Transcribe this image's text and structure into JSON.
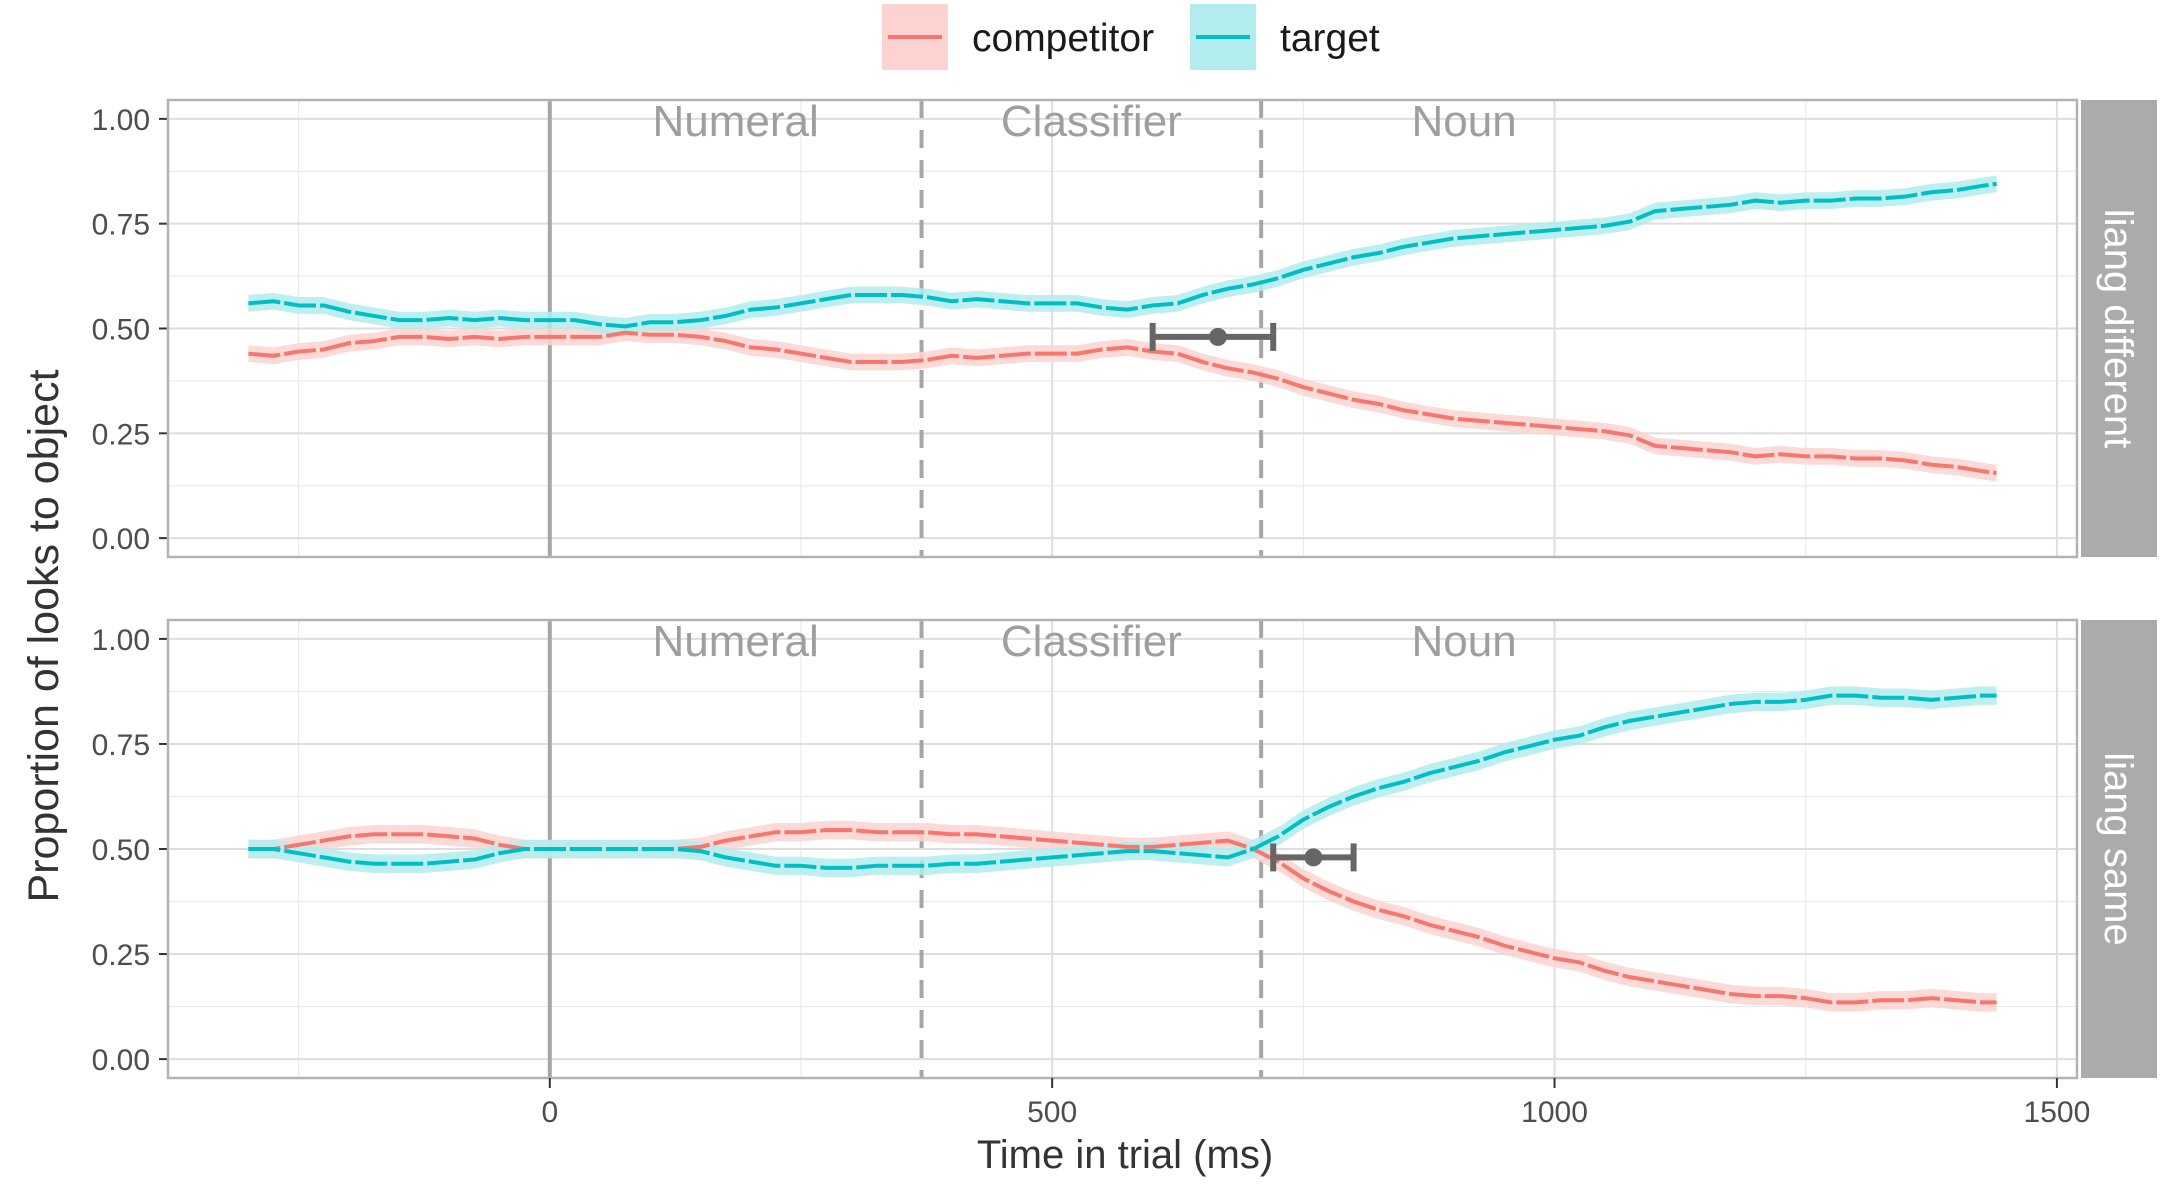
{
  "chart_data": {
    "type": "line",
    "xlabel": "Time in trial (ms)",
    "ylabel": "Proportion of looks to object",
    "xlim": [
      -380,
      1520
    ],
    "ylim": [
      -0.045,
      1.045
    ],
    "xticks": [
      0,
      500,
      1000,
      1500
    ],
    "xtick_labels": [
      "0",
      "500",
      "1000",
      "1500"
    ],
    "yticks": [
      0,
      0.25,
      0.5,
      0.75,
      1
    ],
    "ytick_labels": [
      "0.00",
      "0.25",
      "0.50",
      "0.75",
      "1.00"
    ],
    "grid": true,
    "legend": {
      "position": "top",
      "items": [
        {
          "label": "competitor",
          "color": "#F8766D",
          "ribbon": "#FCD3D0"
        },
        {
          "label": "target",
          "color": "#00BFC4",
          "ribbon": "#B2ECEE"
        }
      ]
    },
    "onset_markers": [
      {
        "x": 0,
        "style": "solid"
      },
      {
        "x": 370,
        "style": "dashed"
      },
      {
        "x": 708,
        "style": "dashed"
      }
    ],
    "region_labels": [
      {
        "label": "Numeral",
        "x": 185
      },
      {
        "label": "Classifier",
        "x": 539
      },
      {
        "label": "Noun",
        "x": 910
      }
    ],
    "panels": [
      {
        "strip_label": "liang different",
        "x": [
          -300,
          -275,
          -250,
          -225,
          -200,
          -175,
          -150,
          -125,
          -100,
          -75,
          -50,
          -25,
          0,
          25,
          50,
          75,
          100,
          125,
          150,
          175,
          200,
          225,
          250,
          275,
          300,
          325,
          350,
          375,
          400,
          425,
          450,
          475,
          500,
          525,
          550,
          575,
          600,
          625,
          650,
          675,
          700,
          725,
          750,
          775,
          800,
          825,
          850,
          875,
          900,
          925,
          950,
          975,
          1000,
          1025,
          1050,
          1075,
          1100,
          1125,
          1150,
          1175,
          1200,
          1225,
          1250,
          1275,
          1300,
          1325,
          1350,
          1375,
          1400,
          1425,
          1440
        ],
        "series": [
          {
            "name": "competitor",
            "ribbon": 0.02,
            "values": [
              0.44,
              0.435,
              0.445,
              0.45,
              0.465,
              0.47,
              0.48,
              0.48,
              0.475,
              0.48,
              0.475,
              0.48,
              0.48,
              0.48,
              0.48,
              0.49,
              0.485,
              0.485,
              0.48,
              0.47,
              0.455,
              0.45,
              0.44,
              0.43,
              0.42,
              0.42,
              0.42,
              0.425,
              0.435,
              0.43,
              0.435,
              0.44,
              0.44,
              0.44,
              0.45,
              0.455,
              0.445,
              0.44,
              0.42,
              0.405,
              0.395,
              0.38,
              0.36,
              0.345,
              0.33,
              0.32,
              0.305,
              0.295,
              0.285,
              0.28,
              0.275,
              0.27,
              0.265,
              0.26,
              0.255,
              0.245,
              0.22,
              0.215,
              0.21,
              0.205,
              0.195,
              0.2,
              0.195,
              0.195,
              0.19,
              0.19,
              0.185,
              0.175,
              0.17,
              0.16,
              0.155
            ]
          },
          {
            "name": "target",
            "ribbon": 0.02,
            "values": [
              0.56,
              0.565,
              0.555,
              0.555,
              0.54,
              0.53,
              0.52,
              0.52,
              0.525,
              0.52,
              0.525,
              0.52,
              0.52,
              0.52,
              0.51,
              0.505,
              0.515,
              0.515,
              0.52,
              0.53,
              0.545,
              0.55,
              0.56,
              0.57,
              0.58,
              0.58,
              0.58,
              0.575,
              0.565,
              0.57,
              0.565,
              0.56,
              0.56,
              0.56,
              0.55,
              0.545,
              0.555,
              0.56,
              0.58,
              0.595,
              0.605,
              0.62,
              0.64,
              0.655,
              0.67,
              0.68,
              0.695,
              0.705,
              0.715,
              0.72,
              0.725,
              0.73,
              0.735,
              0.74,
              0.745,
              0.755,
              0.78,
              0.785,
              0.79,
              0.795,
              0.805,
              0.8,
              0.805,
              0.805,
              0.81,
              0.81,
              0.815,
              0.825,
              0.83,
              0.84,
              0.845
            ]
          }
        ],
        "annotation": {
          "point_x": 665,
          "y": 0.48,
          "xmin": 600,
          "xmax": 720
        }
      },
      {
        "strip_label": "liang same",
        "x": [
          -300,
          -275,
          -250,
          -225,
          -200,
          -175,
          -150,
          -125,
          -100,
          -75,
          -50,
          -25,
          0,
          25,
          50,
          75,
          100,
          125,
          150,
          175,
          200,
          225,
          250,
          275,
          300,
          325,
          350,
          375,
          400,
          425,
          450,
          475,
          500,
          525,
          550,
          575,
          600,
          625,
          650,
          675,
          700,
          725,
          750,
          775,
          800,
          825,
          850,
          875,
          900,
          925,
          950,
          975,
          1000,
          1025,
          1050,
          1075,
          1100,
          1125,
          1150,
          1175,
          1200,
          1225,
          1250,
          1275,
          1300,
          1325,
          1350,
          1375,
          1400,
          1425,
          1440
        ],
        "series": [
          {
            "name": "competitor",
            "ribbon": 0.022,
            "values": [
              0.5,
              0.5,
              0.51,
              0.52,
              0.53,
              0.535,
              0.535,
              0.535,
              0.53,
              0.525,
              0.51,
              0.5,
              0.5,
              0.5,
              0.5,
              0.5,
              0.5,
              0.5,
              0.505,
              0.52,
              0.53,
              0.54,
              0.54,
              0.545,
              0.545,
              0.54,
              0.54,
              0.54,
              0.535,
              0.535,
              0.53,
              0.525,
              0.52,
              0.515,
              0.51,
              0.505,
              0.505,
              0.51,
              0.515,
              0.52,
              0.5,
              0.47,
              0.43,
              0.4,
              0.375,
              0.355,
              0.34,
              0.32,
              0.305,
              0.29,
              0.27,
              0.255,
              0.24,
              0.23,
              0.21,
              0.195,
              0.185,
              0.175,
              0.165,
              0.155,
              0.15,
              0.15,
              0.145,
              0.135,
              0.135,
              0.14,
              0.14,
              0.145,
              0.14,
              0.135,
              0.135
            ]
          },
          {
            "name": "target",
            "ribbon": 0.022,
            "values": [
              0.5,
              0.5,
              0.49,
              0.48,
              0.47,
              0.465,
              0.465,
              0.465,
              0.47,
              0.475,
              0.49,
              0.5,
              0.5,
              0.5,
              0.5,
              0.5,
              0.5,
              0.5,
              0.495,
              0.48,
              0.47,
              0.46,
              0.46,
              0.455,
              0.455,
              0.46,
              0.46,
              0.46,
              0.465,
              0.465,
              0.47,
              0.475,
              0.48,
              0.485,
              0.49,
              0.495,
              0.495,
              0.49,
              0.485,
              0.48,
              0.5,
              0.53,
              0.57,
              0.6,
              0.625,
              0.645,
              0.66,
              0.68,
              0.695,
              0.71,
              0.73,
              0.745,
              0.76,
              0.77,
              0.79,
              0.805,
              0.815,
              0.825,
              0.835,
              0.845,
              0.85,
              0.85,
              0.855,
              0.865,
              0.865,
              0.86,
              0.86,
              0.855,
              0.86,
              0.865,
              0.865
            ]
          }
        ],
        "annotation": {
          "point_x": 760,
          "y": 0.48,
          "xmin": 720,
          "xmax": 800
        }
      }
    ]
  }
}
